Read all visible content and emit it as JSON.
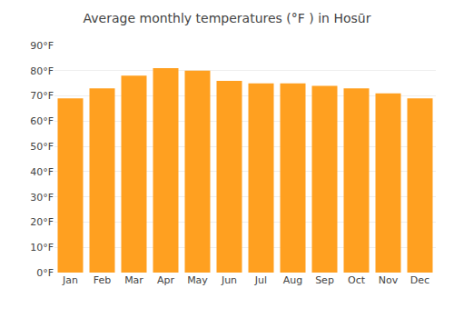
{
  "chart_data": {
    "type": "bar",
    "title": "Average monthly temperatures (°F ) in Hosūr",
    "categories": [
      "Jan",
      "Feb",
      "Mar",
      "Apr",
      "May",
      "Jun",
      "Jul",
      "Aug",
      "Sep",
      "Oct",
      "Nov",
      "Dec"
    ],
    "values": [
      69,
      73,
      78,
      81,
      80,
      76,
      75,
      75,
      74,
      73,
      71,
      69
    ],
    "color": "#FFA020",
    "ylim": [
      0,
      90
    ],
    "yticks": [
      {
        "value": 0,
        "label": "0°F"
      },
      {
        "value": 10,
        "label": "10°F"
      },
      {
        "value": 20,
        "label": "20°F"
      },
      {
        "value": 30,
        "label": "30°F"
      },
      {
        "value": 40,
        "label": "40°F"
      },
      {
        "value": 50,
        "label": "50°F"
      },
      {
        "value": 60,
        "label": "60°F"
      },
      {
        "value": 70,
        "label": "70°F"
      },
      {
        "value": 80,
        "label": "80°F"
      },
      {
        "value": 90,
        "label": "90°F"
      }
    ],
    "grid": true
  }
}
